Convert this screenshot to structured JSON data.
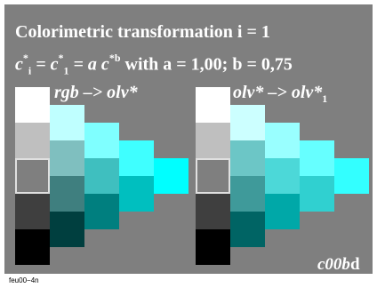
{
  "title": "Colorimetric transformation i = 1",
  "formula": {
    "c_left": "c",
    "star": "*",
    "sub_i": "i",
    "eq1": " = ",
    "sub_1": "1",
    "eq2": " = a c",
    "sup_b": "*b",
    "with_text": " with a = 1,00; b = 0,75"
  },
  "left_label": "rgb  –> olv*",
  "right_label_main": "olv* –> olv*",
  "right_label_sub": "1",
  "code_main": "c00b",
  "code_end": "d",
  "footer": "feu00−4n",
  "colors": {
    "panel": "#7f7f7f",
    "left_grid": [
      [
        "#ffffff",
        "#bfffff",
        "#7fffff",
        "#3fffff",
        "#00ffff"
      ],
      [
        "#bfbfbf",
        "#7fbfbf",
        "#3fbfbf",
        "#00bfbf"
      ],
      [
        "#7f7f7f",
        "#3f7f7f",
        "#007f7f"
      ],
      [
        "#3f3f3f",
        "#003f3f"
      ],
      [
        "#000000"
      ]
    ],
    "right_grid": [
      [
        "#ffffff",
        "#ccffff",
        "#99ffff",
        "#66ffff",
        "#33ffff"
      ],
      [
        "#bfbfbf",
        "#6cc6c6",
        "#4cd8d8",
        "#30d0d0"
      ],
      [
        "#7f7f7f",
        "#3f9a9a",
        "#00a8a8"
      ],
      [
        "#3f3f3f",
        "#006464"
      ],
      [
        "#000000"
      ]
    ]
  }
}
